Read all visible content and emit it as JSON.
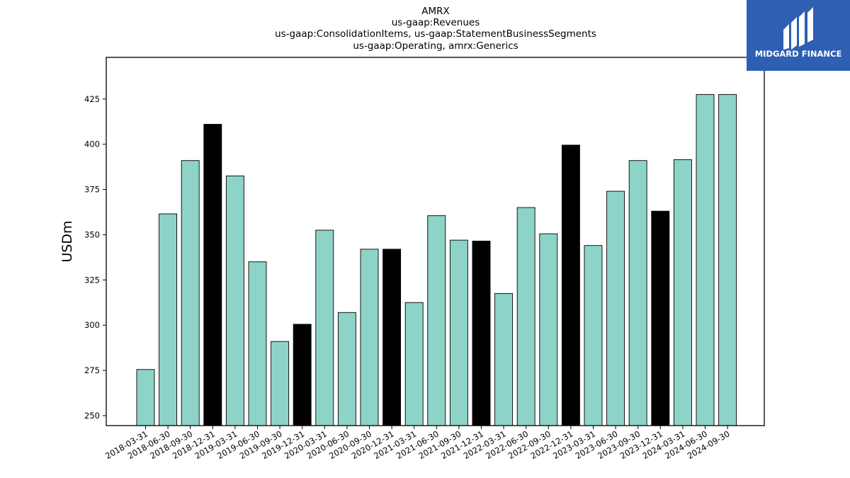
{
  "chart_data": {
    "type": "bar",
    "title_lines": [
      "AMRX",
      "us-gaap:Revenues",
      "us-gaap:ConsolidationItems, us-gaap:StatementBusinessSegments",
      "us-gaap:Operating, amrx:Generics"
    ],
    "xlabel": "",
    "ylabel": "USDm",
    "ylim": [
      244.5,
      448
    ],
    "yticks": [
      250,
      275,
      300,
      325,
      350,
      375,
      400,
      425
    ],
    "categories": [
      "2018-03-31",
      "2018-06-30",
      "2018-09-30",
      "2018-12-31",
      "2019-03-31",
      "2019-06-30",
      "2019-09-30",
      "2019-12-31",
      "2020-03-31",
      "2020-06-30",
      "2020-09-30",
      "2020-12-31",
      "2021-03-31",
      "2021-06-30",
      "2021-09-30",
      "2021-12-31",
      "2022-03-31",
      "2022-06-30",
      "2022-09-30",
      "2022-12-31",
      "2023-03-31",
      "2023-06-30",
      "2023-09-30",
      "2023-12-31",
      "2024-03-31",
      "2024-06-30",
      "2024-09-30"
    ],
    "values": [
      275.5,
      361.5,
      391,
      411,
      382.5,
      335,
      291,
      300.5,
      352.5,
      307,
      342,
      342,
      312.5,
      360.5,
      347,
      346.5,
      317.5,
      365,
      350.5,
      399.5,
      344,
      374,
      391,
      363,
      391.5,
      427.5,
      427.5
    ],
    "year_end_color": "#000000",
    "quarter_color": "#8dd3c7",
    "grid": false,
    "legend": "none"
  },
  "logo": {
    "text": "MIDGARD FINANCE",
    "background": "#2f5fb3"
  }
}
